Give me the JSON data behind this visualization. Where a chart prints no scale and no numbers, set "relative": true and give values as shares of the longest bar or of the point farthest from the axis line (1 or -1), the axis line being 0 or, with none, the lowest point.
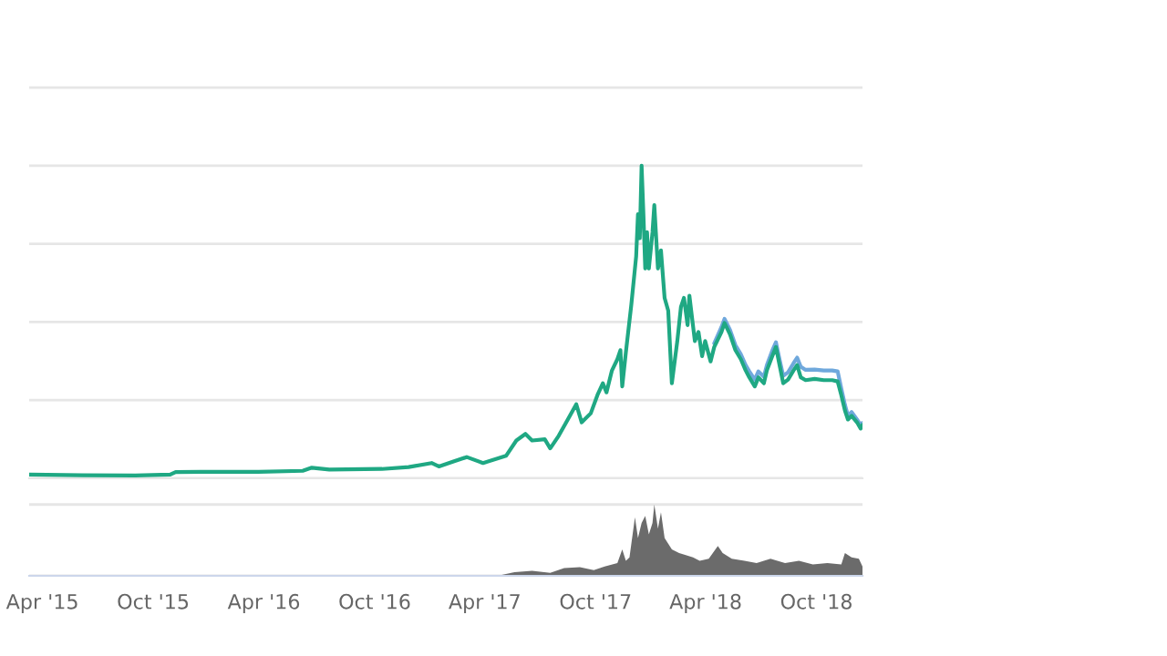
{
  "chart_data": [
    {
      "type": "line",
      "relative": true,
      "grid": "y",
      "tick_labels": false,
      "xlim": [
        "2015-03-10",
        "2018-12-16"
      ],
      "x": [
        "2015-03-10",
        "2015-06-06",
        "2015-09-01",
        "2015-10-29",
        "2015-11-07",
        "2015-12-18",
        "2016-03-23",
        "2016-06-04",
        "2016-06-19",
        "2016-07-18",
        "2016-10-13",
        "2016-11-26",
        "2017-01-03",
        "2017-01-15",
        "2017-02-07",
        "2017-03-02",
        "2017-03-29",
        "2017-05-06",
        "2017-05-23",
        "2017-06-07",
        "2017-06-18",
        "2017-07-09",
        "2017-07-18",
        "2017-08-01",
        "2017-08-16",
        "2017-08-30",
        "2017-09-08",
        "2017-09-23",
        "2017-10-04",
        "2017-10-13",
        "2017-10-19",
        "2017-10-28",
        "2017-11-06",
        "2017-11-11",
        "2017-11-14",
        "2017-11-20",
        "2017-11-29",
        "2017-12-07",
        "2017-12-10",
        "2017-12-13",
        "2017-12-16",
        "2017-12-19",
        "2017-12-22",
        "2017-12-25",
        "2017-12-28",
        "2018-01-03",
        "2018-01-06",
        "2018-01-12",
        "2018-01-17",
        "2018-01-23",
        "2018-01-29",
        "2018-02-04",
        "2018-02-13",
        "2018-02-19",
        "2018-02-24",
        "2018-03-02",
        "2018-03-05",
        "2018-03-14",
        "2018-03-20",
        "2018-03-26",
        "2018-03-31",
        "2018-04-09",
        "2018-04-15",
        "2018-04-27",
        "2018-05-02",
        "2018-05-11",
        "2018-05-20",
        "2018-05-29",
        "2018-06-06",
        "2018-06-12",
        "2018-06-21",
        "2018-06-27",
        "2018-07-06",
        "2018-07-11",
        "2018-07-20",
        "2018-07-26",
        "2018-08-01",
        "2018-08-07",
        "2018-08-15",
        "2018-08-24",
        "2018-08-30",
        "2018-09-05",
        "2018-09-13",
        "2018-09-28",
        "2018-10-13",
        "2018-10-27",
        "2018-11-05",
        "2018-11-11",
        "2018-11-17",
        "2018-11-22",
        "2018-11-28",
        "2018-12-07",
        "2018-12-13",
        "2018-12-16"
      ],
      "series": [
        {
          "color": "#6fa8dc",
          "x": [
            "2018-04-15",
            "2018-04-27",
            "2018-05-02",
            "2018-05-11",
            "2018-05-20",
            "2018-05-29",
            "2018-06-06",
            "2018-06-12",
            "2018-06-21",
            "2018-06-27",
            "2018-07-06",
            "2018-07-11",
            "2018-07-20",
            "2018-07-26",
            "2018-08-01",
            "2018-08-07",
            "2018-08-15",
            "2018-08-24",
            "2018-08-30",
            "2018-09-05",
            "2018-09-13",
            "2018-09-28",
            "2018-10-13",
            "2018-10-27",
            "2018-11-05",
            "2018-11-11",
            "2018-11-17",
            "2018-11-22",
            "2018-11-28",
            "2018-12-07",
            "2018-12-13",
            "2018-12-16"
          ],
          "values": [
            0.432,
            0.484,
            0.51,
            0.475,
            0.426,
            0.397,
            0.362,
            0.342,
            0.316,
            0.342,
            0.325,
            0.362,
            0.409,
            0.435,
            0.38,
            0.328,
            0.339,
            0.368,
            0.386,
            0.357,
            0.347,
            0.348,
            0.345,
            0.345,
            0.342,
            0.287,
            0.235,
            0.2,
            0.212,
            0.188,
            0.171,
            0.177
          ]
        },
        {
          "color": "#1fa883",
          "values": [
            0.012,
            0.01,
            0.009,
            0.012,
            0.02,
            0.021,
            0.021,
            0.024,
            0.034,
            0.028,
            0.03,
            0.036,
            0.049,
            0.038,
            0.053,
            0.068,
            0.049,
            0.072,
            0.121,
            0.142,
            0.121,
            0.125,
            0.096,
            0.136,
            0.188,
            0.237,
            0.179,
            0.208,
            0.266,
            0.304,
            0.275,
            0.345,
            0.381,
            0.41,
            0.294,
            0.403,
            0.555,
            0.71,
            0.845,
            0.768,
            1,
            0.845,
            0.671,
            0.787,
            0.671,
            0.787,
            0.874,
            0.671,
            0.729,
            0.577,
            0.536,
            0.304,
            0.439,
            0.548,
            0.577,
            0.49,
            0.584,
            0.439,
            0.468,
            0.391,
            0.439,
            0.374,
            0.42,
            0.468,
            0.497,
            0.461,
            0.41,
            0.381,
            0.345,
            0.323,
            0.294,
            0.323,
            0.304,
            0.345,
            0.391,
            0.42,
            0.362,
            0.304,
            0.316,
            0.345,
            0.362,
            0.323,
            0.314,
            0.318,
            0.314,
            0.314,
            0.31,
            0.266,
            0.217,
            0.188,
            0.2,
            0.179,
            0.159,
            0.171
          ]
        }
      ]
    },
    {
      "type": "area",
      "relative": true,
      "grid": "y",
      "tick_labels": "x",
      "color": "#6b6b6b",
      "xlim": [
        "2015-03-10",
        "2018-12-16"
      ],
      "xticks": [
        {
          "value": "2015-04-01",
          "label": "Apr '15"
        },
        {
          "value": "2015-10-01",
          "label": "Oct '15"
        },
        {
          "value": "2016-04-01",
          "label": "Apr '16"
        },
        {
          "value": "2016-10-01",
          "label": "Oct '16"
        },
        {
          "value": "2017-04-01",
          "label": "Apr '17"
        },
        {
          "value": "2017-10-01",
          "label": "Oct '17"
        },
        {
          "value": "2018-04-01",
          "label": "Apr '18"
        },
        {
          "value": "2018-10-01",
          "label": "Oct '18"
        }
      ],
      "x": [
        "2017-04-27",
        "2017-05-20",
        "2017-06-18",
        "2017-07-18",
        "2017-08-10",
        "2017-09-05",
        "2017-09-28",
        "2017-10-16",
        "2017-11-06",
        "2017-11-14",
        "2017-11-20",
        "2017-11-26",
        "2017-12-05",
        "2017-12-10",
        "2017-12-16",
        "2017-12-22",
        "2017-12-28",
        "2018-01-03",
        "2018-01-06",
        "2018-01-12",
        "2018-01-17",
        "2018-01-23",
        "2018-01-29",
        "2018-02-04",
        "2018-02-16",
        "2018-02-27",
        "2018-03-11",
        "2018-03-22",
        "2018-04-06",
        "2018-04-21",
        "2018-04-29",
        "2018-05-14",
        "2018-06-04",
        "2018-06-24",
        "2018-07-17",
        "2018-08-10",
        "2018-09-02",
        "2018-09-25",
        "2018-10-19",
        "2018-11-11",
        "2018-11-17",
        "2018-11-28",
        "2018-12-10",
        "2018-12-16"
      ],
      "values": [
        0.01,
        0.05,
        0.07,
        0.04,
        0.11,
        0.12,
        0.08,
        0.13,
        0.18,
        0.37,
        0.21,
        0.26,
        0.82,
        0.53,
        0.74,
        0.84,
        0.58,
        0.74,
        1,
        0.66,
        0.89,
        0.53,
        0.45,
        0.37,
        0.32,
        0.29,
        0.26,
        0.21,
        0.24,
        0.42,
        0.32,
        0.24,
        0.21,
        0.18,
        0.24,
        0.18,
        0.21,
        0.16,
        0.18,
        0.16,
        0.32,
        0.26,
        0.24,
        0.13
      ]
    }
  ]
}
